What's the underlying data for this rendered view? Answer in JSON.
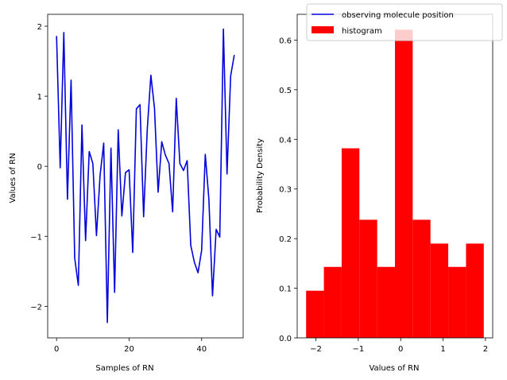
{
  "chart_data": [
    {
      "type": "line",
      "xlabel": "Samples of RN",
      "ylabel": "Values of RN",
      "xlim": [
        -2.45,
        51.45
      ],
      "ylim": [
        -2.45,
        2.17
      ],
      "xticks": [
        0,
        20,
        40
      ],
      "xtick_labels": [
        "0",
        "20",
        "40"
      ],
      "yticks": [
        -2,
        -1,
        0,
        1,
        2
      ],
      "ytick_labels": [
        "−2",
        "−1",
        "0",
        "1",
        "2"
      ],
      "grid": false,
      "series": [
        {
          "name": "observing molecule position",
          "color": "#0000dd",
          "x": [
            0,
            1,
            2,
            3,
            4,
            5,
            6,
            7,
            8,
            9,
            10,
            11,
            12,
            13,
            14,
            15,
            16,
            17,
            18,
            19,
            20,
            21,
            22,
            23,
            24,
            25,
            26,
            27,
            28,
            29,
            30,
            31,
            32,
            33,
            34,
            35,
            36,
            37,
            38,
            39,
            40,
            41,
            42,
            43,
            44,
            45,
            46,
            47,
            48,
            49
          ],
          "values": [
            1.86,
            -0.02,
            1.91,
            -0.47,
            1.23,
            -1.31,
            -1.7,
            0.59,
            -1.06,
            0.21,
            0.04,
            -0.99,
            -0.13,
            0.33,
            -2.23,
            0.26,
            -1.8,
            0.52,
            -0.71,
            -0.09,
            -0.05,
            -1.23,
            0.82,
            0.88,
            -0.72,
            0.52,
            1.3,
            0.83,
            -0.37,
            0.35,
            0.16,
            0.04,
            -0.65,
            0.97,
            0.04,
            -0.06,
            0.08,
            -1.13,
            -1.37,
            -1.52,
            -1.2,
            0.17,
            -0.47,
            -1.85,
            -0.9,
            -1.01,
            1.96,
            -0.11,
            1.29,
            1.59
          ]
        }
      ]
    },
    {
      "type": "bar",
      "xlabel": "Values of RN",
      "ylabel": "Probability Density",
      "xlim": [
        -2.44,
        2.17
      ],
      "ylim": [
        0,
        0.652
      ],
      "xticks": [
        -2,
        -1,
        0,
        1,
        2
      ],
      "xtick_labels": [
        "−2",
        "−1",
        "0",
        "1",
        "2"
      ],
      "yticks": [
        0,
        0.1,
        0.2,
        0.3,
        0.4,
        0.5,
        0.6
      ],
      "ytick_labels": [
        "0.0",
        "0.1",
        "0.2",
        "0.3",
        "0.4",
        "0.5",
        "0.6"
      ],
      "grid": false,
      "legend": {
        "placement": "top-right",
        "entries": [
          {
            "label": "observing molecule position",
            "kind": "line",
            "color": "#0000dd"
          },
          {
            "label": "histogram",
            "kind": "patch",
            "color": "#ff0000"
          }
        ]
      },
      "series": [
        {
          "name": "histogram",
          "color": "#ff0000",
          "bin_edges": [
            -2.23,
            -1.811,
            -1.392,
            -0.973,
            -0.554,
            -0.135,
            0.284,
            0.703,
            1.122,
            1.541,
            1.96
          ],
          "values": [
            0.095,
            0.143,
            0.382,
            0.238,
            0.143,
            0.621,
            0.238,
            0.19,
            0.143,
            0.19
          ]
        }
      ]
    }
  ]
}
